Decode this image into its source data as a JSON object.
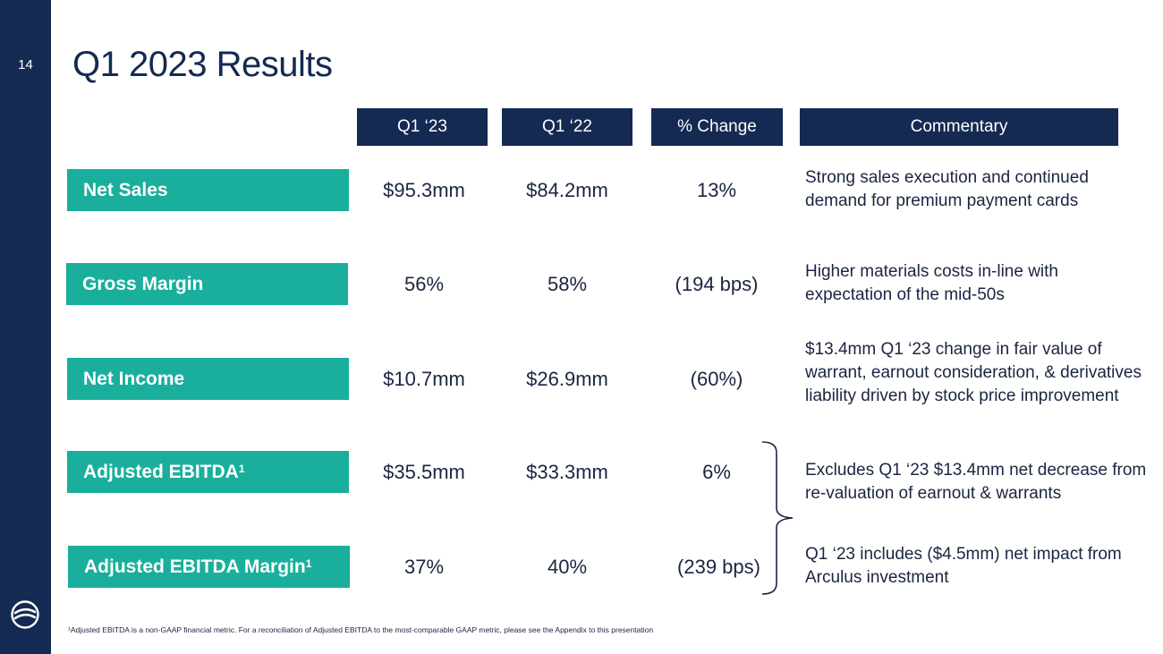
{
  "slide": {
    "page_number": "14",
    "title": "Q1 2023 Results"
  },
  "table": {
    "headers": [
      "Q1 ‘23",
      "Q1 ‘22",
      "% Change",
      "Commentary"
    ],
    "rows": [
      {
        "label": "Net Sales",
        "label_sup": "",
        "q1_23": "$95.3mm",
        "q1_22": "$84.2mm",
        "change": "13%",
        "commentary": "Strong sales execution and continued demand for premium payment cards"
      },
      {
        "label": "Gross Margin",
        "label_sup": "",
        "q1_23": "56%",
        "q1_22": "58%",
        "change": "(194 bps)",
        "commentary": "Higher materials costs in-line with expectation of the mid-50s"
      },
      {
        "label": "Net Income",
        "label_sup": "",
        "q1_23": "$10.7mm",
        "q1_22": "$26.9mm",
        "change": "(60%)",
        "commentary": "$13.4mm Q1 ‘23 change in fair value of warrant, earnout consideration, & derivatives liability driven by stock price improvement"
      },
      {
        "label": "Adjusted EBITDA",
        "label_sup": "1",
        "q1_23": "$35.5mm",
        "q1_22": "$33.3mm",
        "change": "6%",
        "commentary": "Excludes Q1 ‘23 $13.4mm net decrease from re-valuation of earnout & warrants"
      },
      {
        "label": "Adjusted EBITDA Margin",
        "label_sup": "1",
        "q1_23": "37%",
        "q1_22": "40%",
        "change": "(239 bps)",
        "commentary": "Q1 ‘23 includes ($4.5mm) net impact from Arculus investment"
      }
    ]
  },
  "footnote": "¹Adjusted EBITDA is a non-GAAP financial metric. For a reconciliation of Adjusted EBITDA to the most-comparable GAAP metric, please see the Appendix to this presentation",
  "icons": {
    "logo": "company-logo-icon",
    "brace": "right-curly-brace-icon"
  },
  "colors": {
    "navy": "#142a52",
    "teal": "#1aaf9c",
    "text": "#1a2540"
  }
}
